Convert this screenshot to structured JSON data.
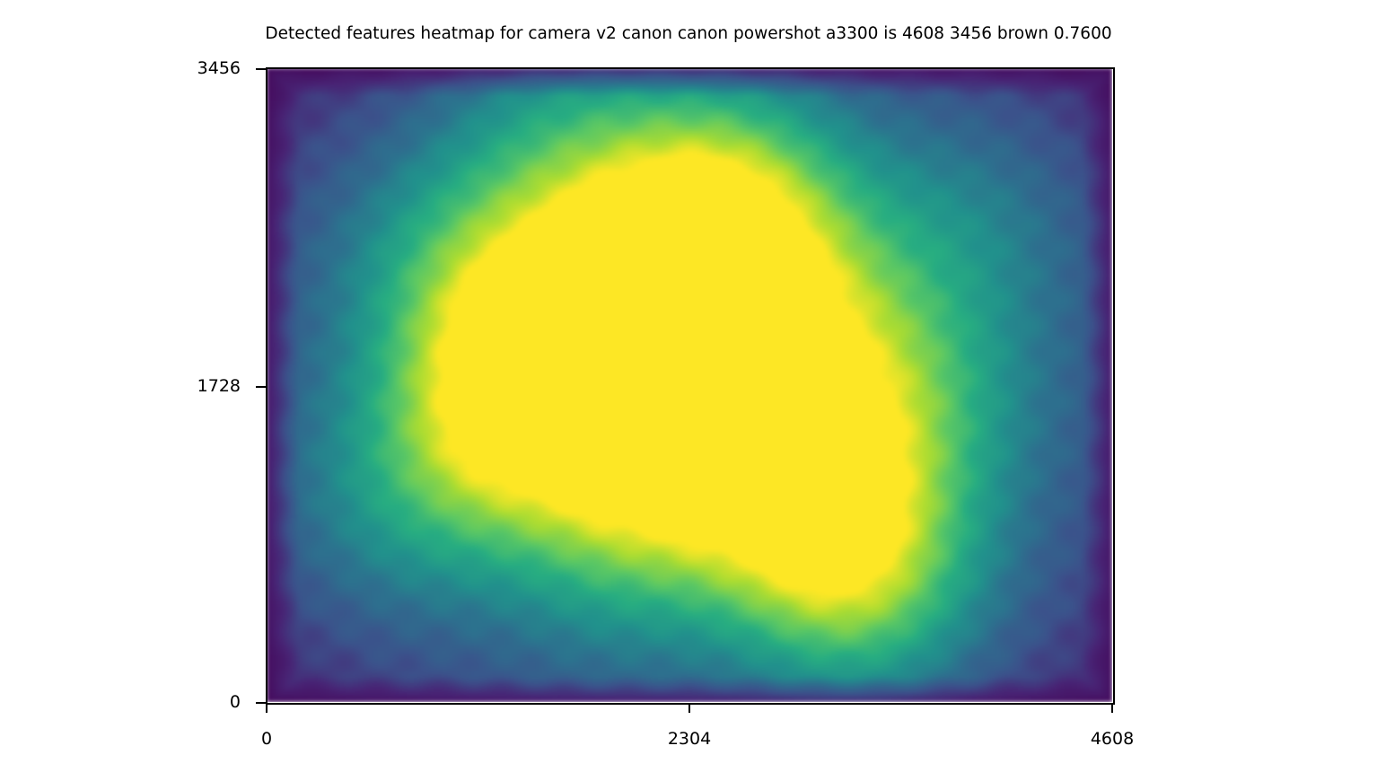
{
  "chart_data": {
    "type": "heatmap",
    "title": "Detected features heatmap for camera v2 canon canon powershot a3300 is 4608 3456 brown 0.7600",
    "xlabel": "",
    "ylabel": "",
    "xlim": [
      0,
      4608
    ],
    "ylim": [
      0,
      3456
    ],
    "x_ticks": [
      "0",
      "2304",
      "4608"
    ],
    "y_ticks": [
      "0",
      "1728",
      "3456"
    ],
    "colormap": "viridis",
    "grid": false,
    "legend": "none",
    "hotspots": [
      {
        "x": 1400,
        "y": 1780,
        "intensity": 1.0
      },
      {
        "x": 1700,
        "y": 2170,
        "intensity": 0.98
      },
      {
        "x": 2200,
        "y": 2360,
        "intensity": 0.92
      },
      {
        "x": 2100,
        "y": 1300,
        "intensity": 0.9
      },
      {
        "x": 2880,
        "y": 1050,
        "intensity": 0.88
      },
      {
        "x": 2440,
        "y": 2810,
        "intensity": 0.8
      },
      {
        "x": 2280,
        "y": 1700,
        "intensity": 0.78
      },
      {
        "x": 2550,
        "y": 2000,
        "intensity": 0.72
      },
      {
        "x": 1200,
        "y": 1420,
        "intensity": 0.7
      },
      {
        "x": 3200,
        "y": 750,
        "intensity": 0.65
      },
      {
        "x": 1000,
        "y": 2400,
        "intensity": 0.62
      },
      {
        "x": 1600,
        "y": 3100,
        "intensity": 0.58
      },
      {
        "x": 3100,
        "y": 1400,
        "intensity": 0.55
      },
      {
        "x": 3200,
        "y": 2000,
        "intensity": 0.5
      },
      {
        "x": 2700,
        "y": 2600,
        "intensity": 0.52
      },
      {
        "x": 3600,
        "y": 1600,
        "intensity": 0.42
      },
      {
        "x": 700,
        "y": 1100,
        "intensity": 0.42
      },
      {
        "x": 1900,
        "y": 800,
        "intensity": 0.4
      },
      {
        "x": 3300,
        "y": 600,
        "intensity": 0.45
      },
      {
        "x": 3800,
        "y": 2600,
        "intensity": 0.38
      }
    ],
    "value_range": [
      0,
      1
    ]
  }
}
